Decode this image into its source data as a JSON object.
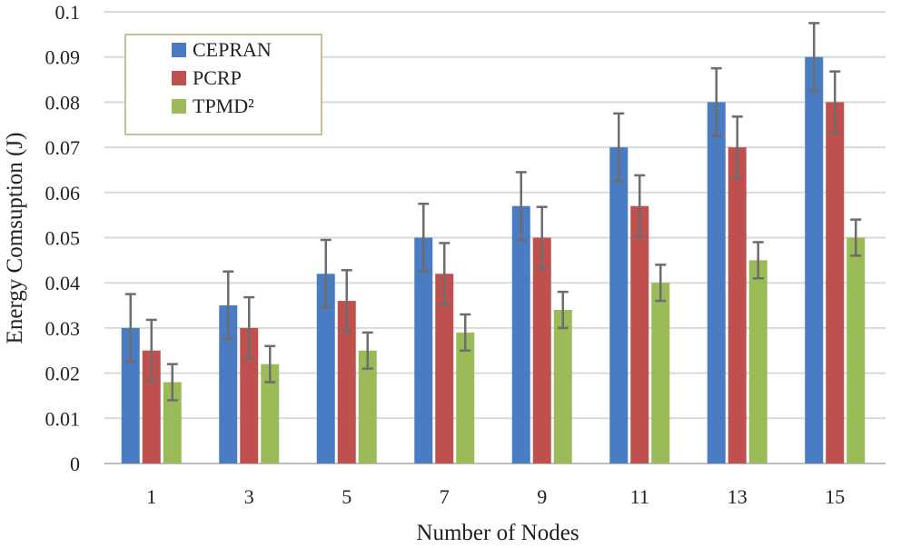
{
  "chart_data": {
    "type": "bar",
    "title": "",
    "xlabel": "Number of Nodes",
    "ylabel": "Energy Comsuption (J)",
    "ylim": [
      0,
      0.1
    ],
    "yticks": [
      "0",
      "0.01",
      "0.02",
      "0.03",
      "0.04",
      "0.05",
      "0.06",
      "0.07",
      "0.08",
      "0.09",
      "0.1"
    ],
    "categories": [
      "1",
      "3",
      "5",
      "7",
      "9",
      "11",
      "13",
      "15"
    ],
    "grid": true,
    "legend_position": "top-left",
    "series": [
      {
        "name": "CEPRAN",
        "color": "#4a7cc3",
        "values": [
          0.03,
          0.035,
          0.042,
          0.05,
          0.057,
          0.07,
          0.08,
          0.09
        ],
        "error": [
          0.0075,
          0.0075,
          0.0075,
          0.0075,
          0.0075,
          0.0075,
          0.0075,
          0.0075
        ]
      },
      {
        "name": "PCRP",
        "color": "#c0504d",
        "values": [
          0.025,
          0.03,
          0.036,
          0.042,
          0.05,
          0.057,
          0.07,
          0.08
        ],
        "error": [
          0.0068,
          0.0068,
          0.0068,
          0.0068,
          0.0068,
          0.0068,
          0.0068,
          0.0068
        ]
      },
      {
        "name": "TPMD²",
        "color": "#9bbb59",
        "values": [
          0.018,
          0.022,
          0.025,
          0.029,
          0.034,
          0.04,
          0.045,
          0.05
        ],
        "error": [
          0.004,
          0.004,
          0.004,
          0.004,
          0.004,
          0.004,
          0.004,
          0.004
        ]
      }
    ]
  }
}
